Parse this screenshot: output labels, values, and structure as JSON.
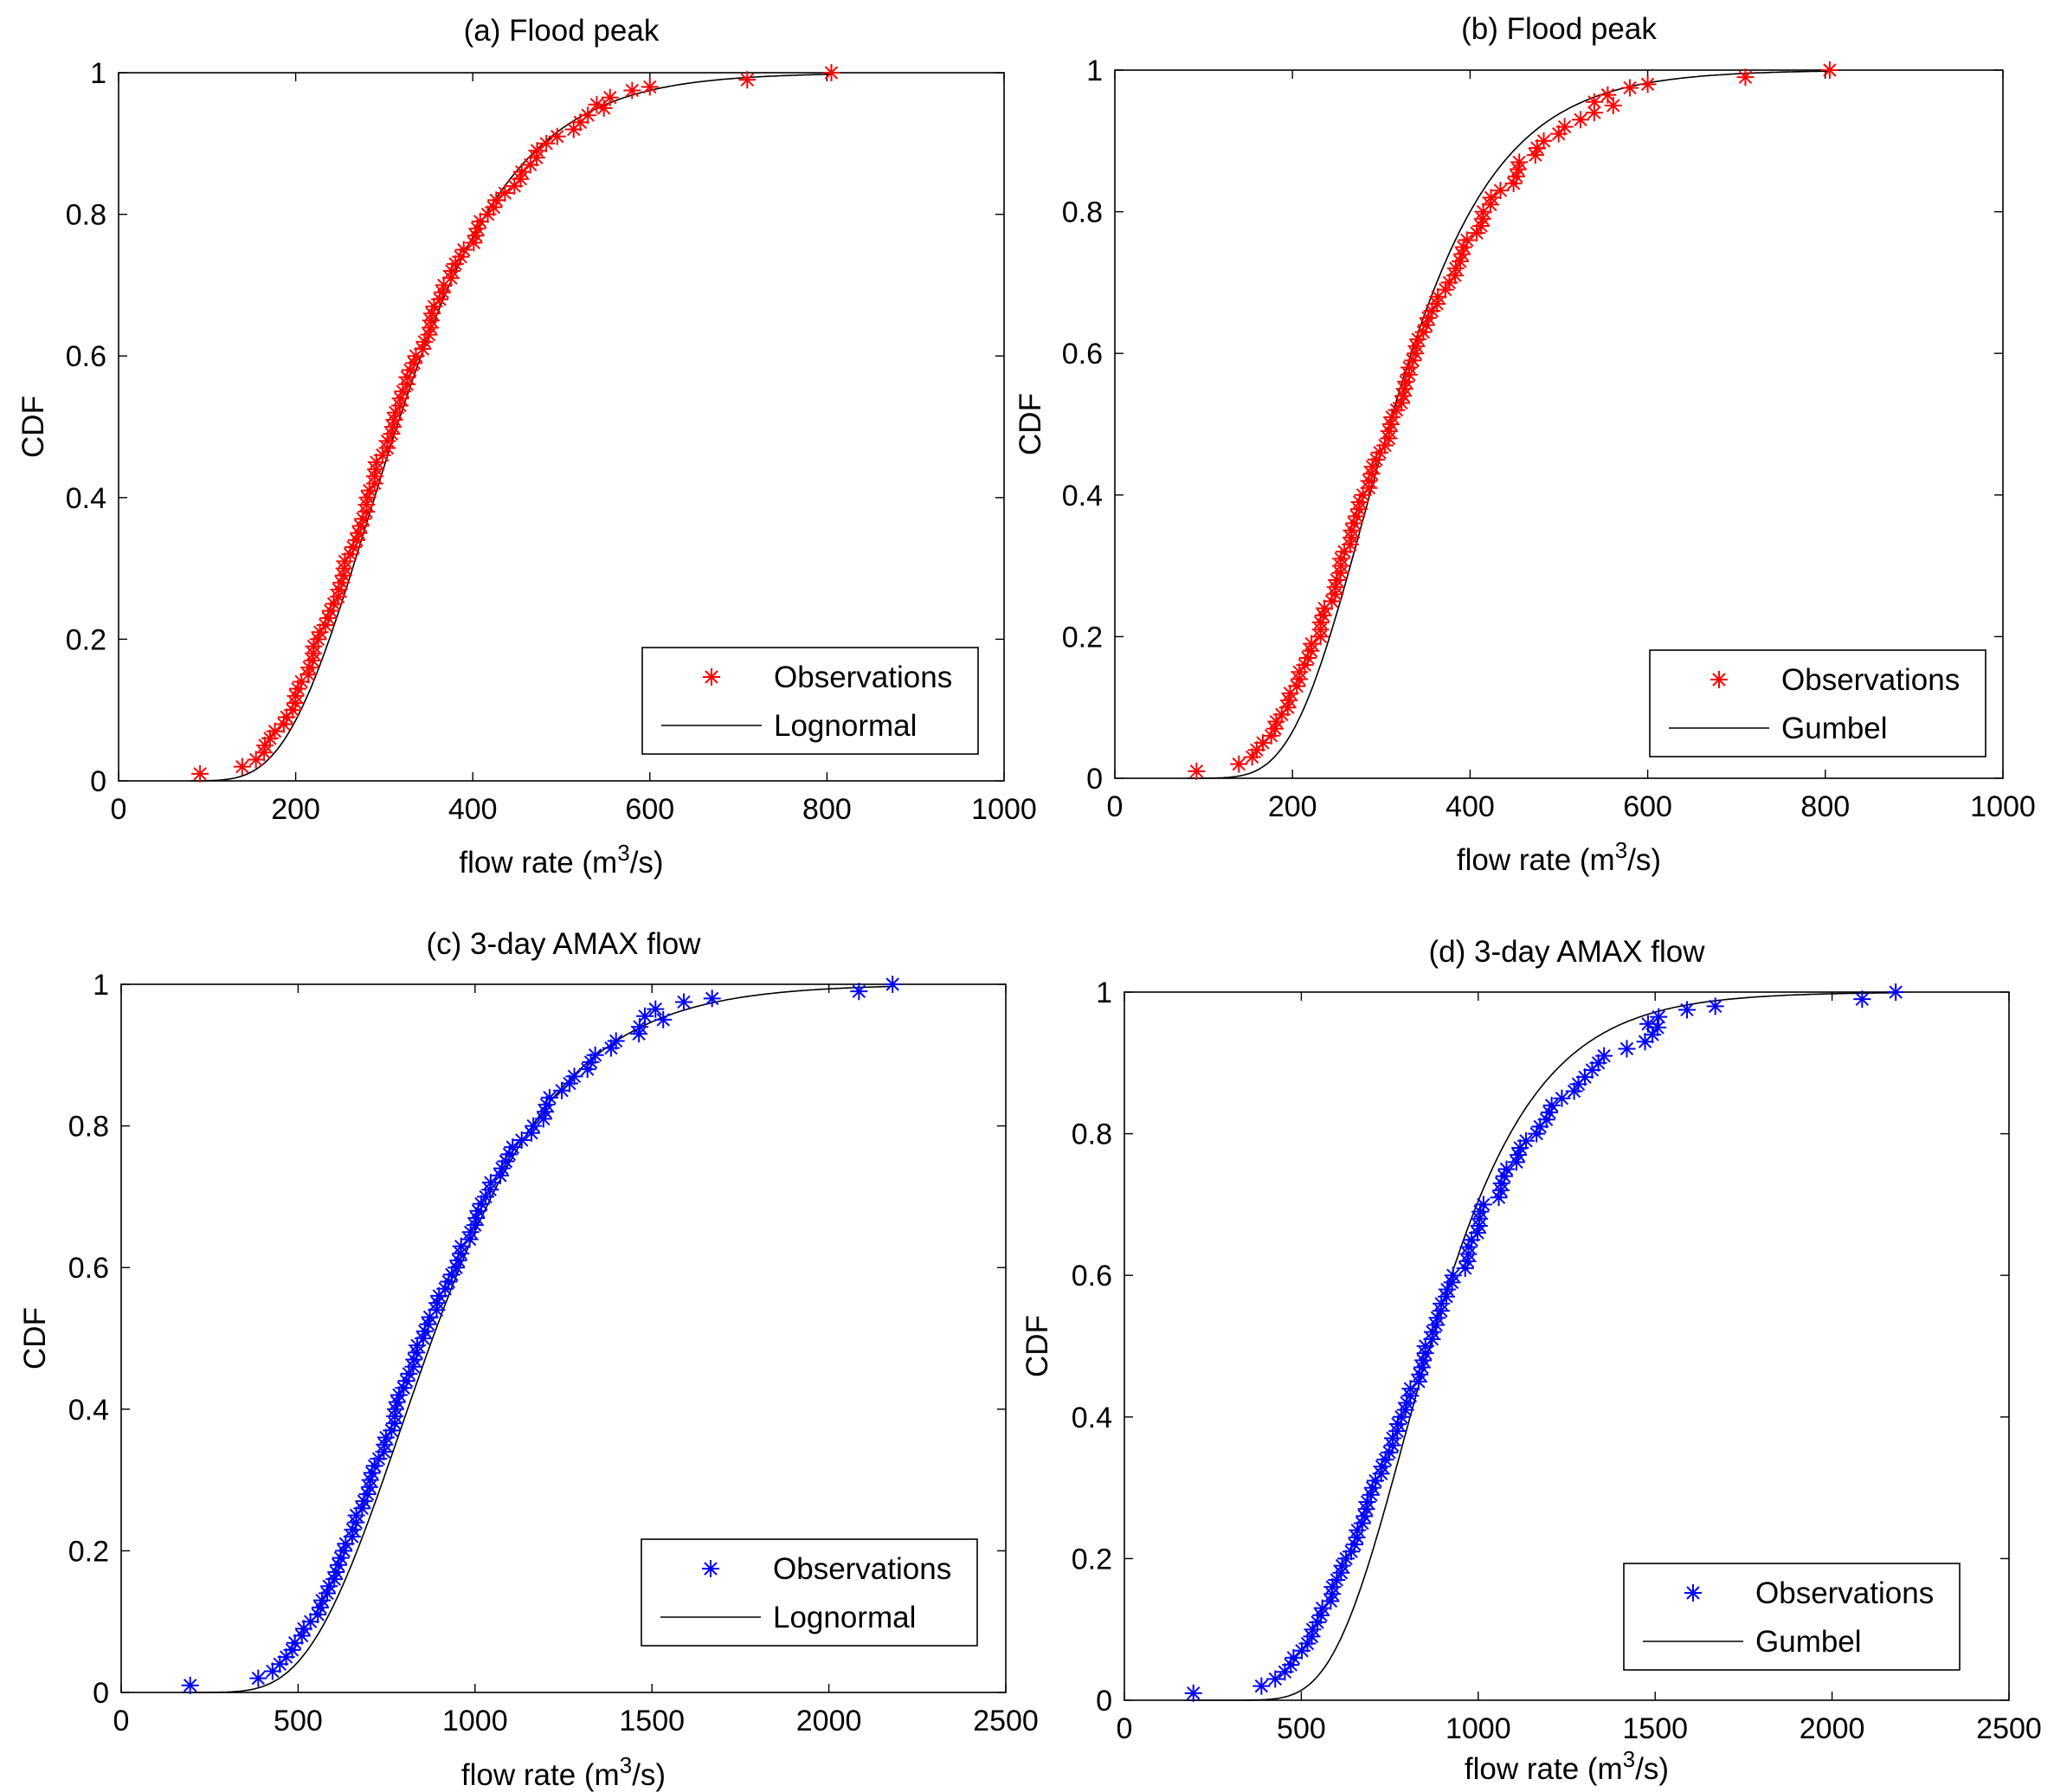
{
  "chart_data": [
    {
      "id": "a",
      "type": "line",
      "title": "(a) Flood peak",
      "xlabel": "flow rate (m",
      "xlabel_sup": "3",
      "xlabel_tail": "/s)",
      "ylabel": "CDF",
      "xlim": [
        0,
        1000
      ],
      "ylim": [
        0,
        1
      ],
      "xticks": [
        0,
        200,
        400,
        600,
        800,
        1000
      ],
      "xtick_labels": [
        "0",
        "200",
        "400",
        "600",
        "800",
        "1000"
      ],
      "yticks": [
        0,
        0.2,
        0.4,
        0.6,
        0.8,
        1
      ],
      "ytick_labels": [
        "0",
        "0.2",
        "0.4",
        "0.6",
        "0.8",
        "1"
      ],
      "legend_position": "bottom-right",
      "series": [
        {
          "name": "Observations",
          "kind": "markers",
          "color": "#ff0000",
          "x_min": 92,
          "x_med": 310,
          "x_max": 805,
          "tail": [
            [
              540,
              0.955
            ],
            [
              555,
              0.965
            ],
            [
              580,
              0.975
            ],
            [
              600,
              0.98
            ],
            [
              710,
              0.99
            ],
            [
              805,
              1.0
            ]
          ]
        },
        {
          "name": "Lognormal",
          "kind": "line",
          "color": "#000000",
          "dist": "lognormal",
          "mu": 5.75,
          "sigma": 0.33
        }
      ]
    },
    {
      "id": "b",
      "type": "line",
      "title": "(b) Flood peak",
      "xlabel": "flow rate (m",
      "xlabel_sup": "3",
      "xlabel_tail": "/s)",
      "ylabel": "CDF",
      "xlim": [
        0,
        1000
      ],
      "ylim": [
        0,
        1
      ],
      "xticks": [
        0,
        200,
        400,
        600,
        800,
        1000
      ],
      "xtick_labels": [
        "0",
        "200",
        "400",
        "600",
        "800",
        "1000"
      ],
      "yticks": [
        0,
        0.2,
        0.4,
        0.6,
        0.8,
        1
      ],
      "ytick_labels": [
        "0",
        "0.2",
        "0.4",
        "0.6",
        "0.8",
        "1"
      ],
      "legend_position": "bottom-right",
      "series": [
        {
          "name": "Observations",
          "kind": "markers",
          "color": "#ff0000",
          "x_min": 92,
          "x_med": 310,
          "x_max": 805,
          "tail": [
            [
              540,
              0.955
            ],
            [
              555,
              0.965
            ],
            [
              580,
              0.975
            ],
            [
              600,
              0.98
            ],
            [
              710,
              0.99
            ],
            [
              805,
              1.0
            ]
          ]
        },
        {
          "name": "Gumbel",
          "kind": "line",
          "color": "#000000",
          "dist": "gumbel",
          "mu": 280,
          "beta": 80
        }
      ]
    },
    {
      "id": "c",
      "type": "line",
      "title": "(c) 3-day AMAX flow",
      "xlabel": "flow rate (m",
      "xlabel_sup": "3",
      "xlabel_tail": "/s)",
      "ylabel": "CDF",
      "xlim": [
        0,
        2500
      ],
      "ylim": [
        0,
        1
      ],
      "xticks": [
        0,
        500,
        1000,
        1500,
        2000,
        2500
      ],
      "xtick_labels": [
        "0",
        "500",
        "1000",
        "1500",
        "2000",
        "2500"
      ],
      "yticks": [
        0,
        0.2,
        0.4,
        0.6,
        0.8,
        1
      ],
      "ytick_labels": [
        "0",
        "0.2",
        "0.4",
        "0.6",
        "0.8",
        "1"
      ],
      "legend_position": "bottom-right",
      "series": [
        {
          "name": "Observations",
          "kind": "markers",
          "color": "#0000ff",
          "x_min": 195,
          "x_med": 860,
          "x_max": 2180,
          "tail": [
            [
              1480,
              0.955
            ],
            [
              1510,
              0.965
            ],
            [
              1590,
              0.975
            ],
            [
              1670,
              0.98
            ],
            [
              2085,
              0.99
            ],
            [
              2180,
              1.0
            ]
          ]
        },
        {
          "name": "Lognormal",
          "kind": "line",
          "color": "#000000",
          "dist": "lognormal",
          "mu": 6.78,
          "sigma": 0.33
        }
      ]
    },
    {
      "id": "d",
      "type": "line",
      "title": "(d) 3-day AMAX flow",
      "xlabel": "flow rate (m",
      "xlabel_sup": "3",
      "xlabel_tail": "/s)",
      "ylabel": "CDF",
      "xlim": [
        0,
        2500
      ],
      "ylim": [
        0,
        1
      ],
      "xticks": [
        0,
        500,
        1000,
        1500,
        2000,
        2500
      ],
      "xtick_labels": [
        "0",
        "500",
        "1000",
        "1500",
        "2000",
        "2500"
      ],
      "yticks": [
        0,
        0.2,
        0.4,
        0.6,
        0.8,
        1
      ],
      "ytick_labels": [
        "0",
        "0.2",
        "0.4",
        "0.6",
        "0.8",
        "1"
      ],
      "legend_position": "bottom-right",
      "series": [
        {
          "name": "Observations",
          "kind": "markers",
          "color": "#0000ff",
          "x_min": 195,
          "x_med": 860,
          "x_max": 2180,
          "tail": [
            [
              1480,
              0.955
            ],
            [
              1510,
              0.965
            ],
            [
              1590,
              0.975
            ],
            [
              1670,
              0.98
            ],
            [
              2085,
              0.99
            ],
            [
              2180,
              1.0
            ]
          ]
        },
        {
          "name": "Gumbel",
          "kind": "line",
          "color": "#000000",
          "dist": "gumbel",
          "mu": 790,
          "beta": 200
        }
      ]
    }
  ],
  "n_observations": 100
}
